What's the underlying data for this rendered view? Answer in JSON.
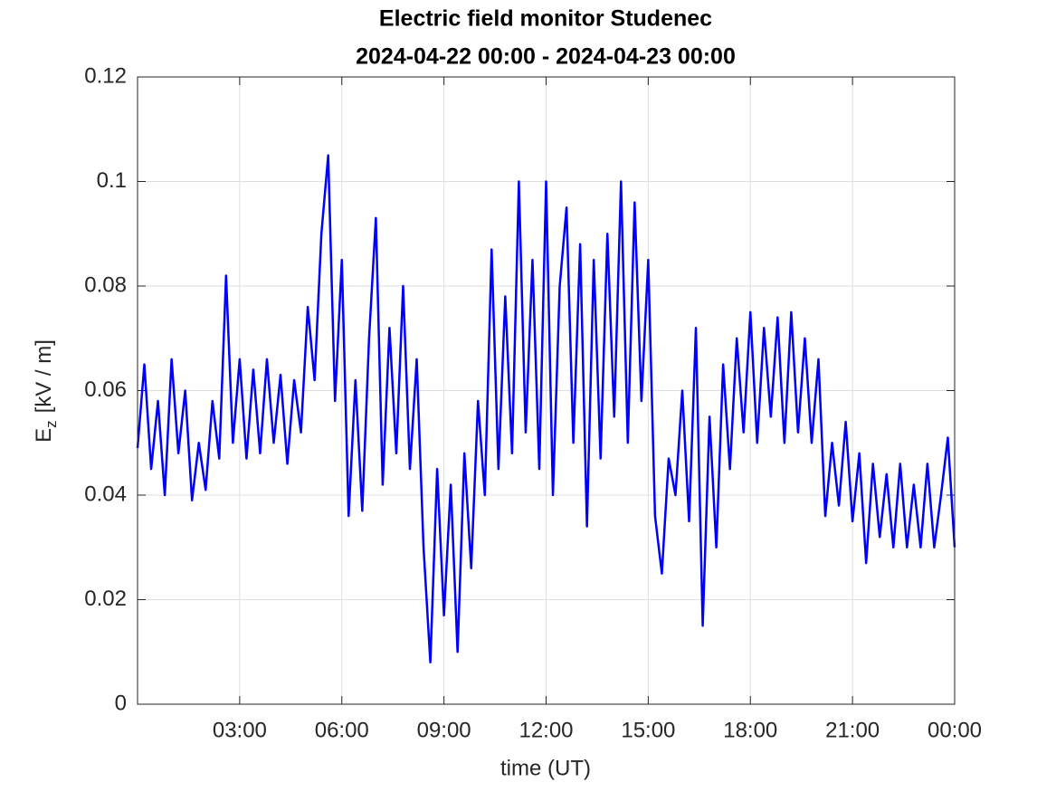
{
  "chart_data": {
    "type": "line",
    "title": [
      "Electric field monitor Studenec",
      "2024-04-22 00:00 - 2024-04-23 00:00"
    ],
    "xlabel": "time (UT)",
    "ylabel": [
      "E",
      "z",
      "[kV / m]"
    ],
    "x": [
      0,
      0.2,
      0.4,
      0.6,
      0.8,
      1,
      1.2,
      1.4,
      1.6,
      1.8,
      2,
      2.2,
      2.4,
      2.6,
      2.8,
      3,
      3.2,
      3.4,
      3.6,
      3.8,
      4,
      4.2,
      4.4,
      4.6,
      4.8,
      5,
      5.2,
      5.4,
      5.6,
      5.8,
      6,
      6.2,
      6.4,
      6.6,
      6.8,
      7,
      7.2,
      7.4,
      7.6,
      7.8,
      8,
      8.2,
      8.4,
      8.6,
      8.8,
      9,
      9.2,
      9.4,
      9.6,
      9.8,
      10,
      10.2,
      10.4,
      10.6,
      10.8,
      11,
      11.2,
      11.4,
      11.6,
      11.8,
      12,
      12.2,
      12.4,
      12.6,
      12.8,
      13,
      13.2,
      13.4,
      13.6,
      13.8,
      14,
      14.2,
      14.4,
      14.6,
      14.8,
      15,
      15.2,
      15.4,
      15.6,
      15.8,
      16,
      16.2,
      16.4,
      16.6,
      16.8,
      17,
      17.2,
      17.4,
      17.6,
      17.8,
      18,
      18.2,
      18.4,
      18.6,
      18.8,
      19,
      19.2,
      19.4,
      19.6,
      19.8,
      20,
      20.2,
      20.4,
      20.6,
      20.8,
      21,
      21.2,
      21.4,
      21.6,
      21.8,
      22,
      22.2,
      22.4,
      22.6,
      22.8,
      23,
      23.2,
      23.4,
      23.6,
      23.8,
      24
    ],
    "series": [
      {
        "color": "#0000ff",
        "values": [
          0.049,
          0.065,
          0.045,
          0.058,
          0.04,
          0.066,
          0.048,
          0.06,
          0.039,
          0.05,
          0.041,
          0.058,
          0.047,
          0.082,
          0.05,
          0.066,
          0.047,
          0.064,
          0.048,
          0.066,
          0.05,
          0.063,
          0.046,
          0.062,
          0.052,
          0.076,
          0.062,
          0.09,
          0.105,
          0.058,
          0.085,
          0.036,
          0.062,
          0.037,
          0.07,
          0.093,
          0.042,
          0.072,
          0.048,
          0.08,
          0.045,
          0.066,
          0.03,
          0.008,
          0.045,
          0.017,
          0.042,
          0.01,
          0.048,
          0.026,
          0.058,
          0.04,
          0.087,
          0.045,
          0.078,
          0.048,
          0.1,
          0.052,
          0.085,
          0.045,
          0.1,
          0.04,
          0.08,
          0.095,
          0.05,
          0.088,
          0.034,
          0.085,
          0.047,
          0.09,
          0.055,
          0.1,
          0.05,
          0.096,
          0.058,
          0.085,
          0.036,
          0.025,
          0.047,
          0.04,
          0.06,
          0.035,
          0.072,
          0.015,
          0.055,
          0.03,
          0.065,
          0.045,
          0.07,
          0.052,
          0.075,
          0.05,
          0.072,
          0.055,
          0.074,
          0.05,
          0.075,
          0.052,
          0.07,
          0.05,
          0.066,
          0.036,
          0.05,
          0.038,
          0.054,
          0.035,
          0.048,
          0.027,
          0.046,
          0.032,
          0.044,
          0.03,
          0.046,
          0.03,
          0.042,
          0.03,
          0.046,
          0.03,
          0.04,
          0.051,
          0.03
        ]
      }
    ],
    "xlim": [
      0,
      24
    ],
    "xticks": [
      {
        "value": 3,
        "label": "03:00"
      },
      {
        "value": 6,
        "label": "06:00"
      },
      {
        "value": 9,
        "label": "09:00"
      },
      {
        "value": 12,
        "label": "12:00"
      },
      {
        "value": 15,
        "label": "15:00"
      },
      {
        "value": 18,
        "label": "18:00"
      },
      {
        "value": 21,
        "label": "21:00"
      },
      {
        "value": 24,
        "label": "00:00"
      }
    ],
    "ylim": [
      0,
      0.12
    ],
    "yticks": [
      0,
      0.02,
      0.04,
      0.06,
      0.08,
      0.1,
      0.12
    ],
    "grid": true
  }
}
